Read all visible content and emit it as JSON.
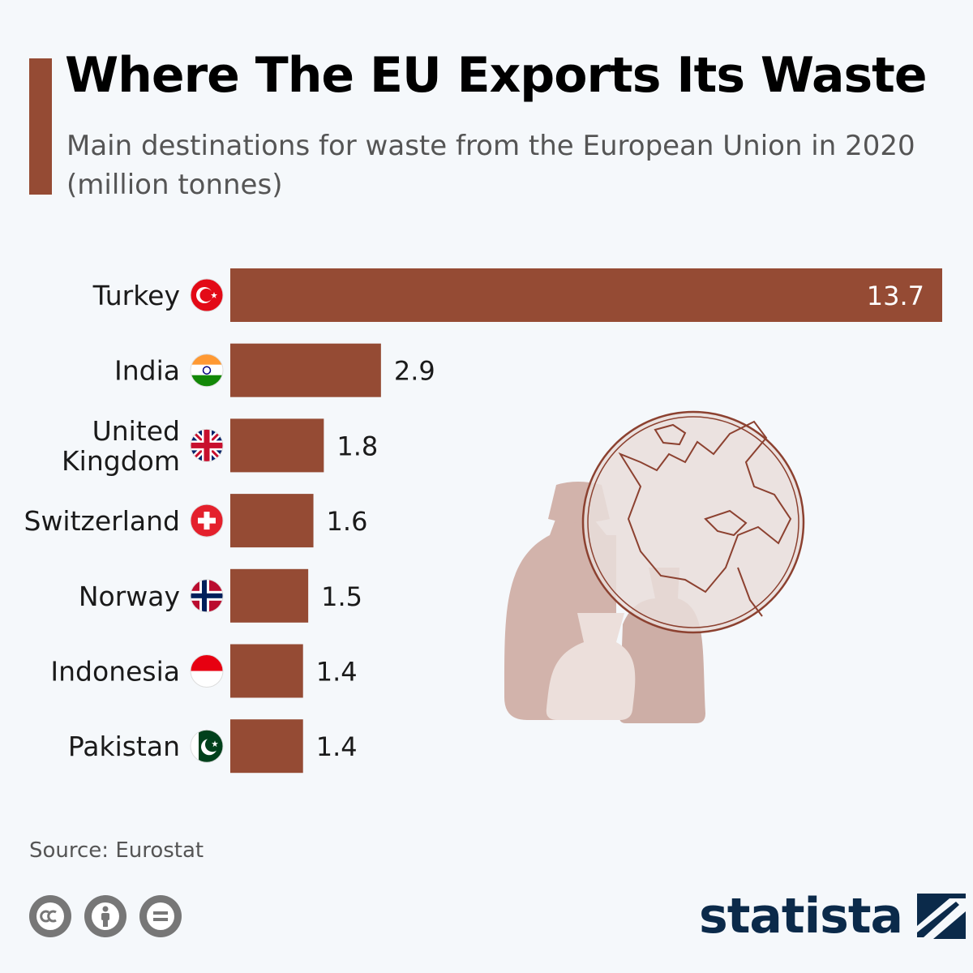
{
  "header": {
    "title": "Where The EU Exports Its Waste",
    "subtitle": "Main destinations for waste from the European Union in 2020 (million tonnes)"
  },
  "chart_data": {
    "type": "bar",
    "orientation": "horizontal",
    "categories": [
      "Turkey",
      "India",
      "United Kingdom",
      "Switzerland",
      "Norway",
      "Indonesia",
      "Pakistan"
    ],
    "category_lines": [
      [
        "Turkey"
      ],
      [
        "India"
      ],
      [
        "United",
        "Kingdom"
      ],
      [
        "Switzerland"
      ],
      [
        "Norway"
      ],
      [
        "Indonesia"
      ],
      [
        "Pakistan"
      ]
    ],
    "values": [
      13.7,
      2.9,
      1.8,
      1.6,
      1.5,
      1.4,
      1.4
    ],
    "value_labels": [
      "13.7",
      "2.9",
      "1.8",
      "1.6",
      "1.5",
      "1.4",
      "1.4"
    ],
    "flags": [
      "turkey-flag-icon",
      "india-flag-icon",
      "uk-flag-icon",
      "switzerland-flag-icon",
      "norway-flag-icon",
      "indonesia-flag-icon",
      "pakistan-flag-icon"
    ],
    "xlim": [
      0,
      13.7
    ],
    "grid": false,
    "legend": "none",
    "bar_color": "#954b34"
  },
  "illustration": "globe-and-waste-bags-icon",
  "footer": {
    "source": "Source: Eurostat",
    "brand": "statista",
    "license_icons": [
      "cc-icon",
      "attribution-icon",
      "no-derivatives-icon"
    ]
  },
  "colors": {
    "accent": "#954b34",
    "background": "#f5f8fb",
    "brand": "#0b2a4a",
    "illustration": "#d2b3ab"
  }
}
